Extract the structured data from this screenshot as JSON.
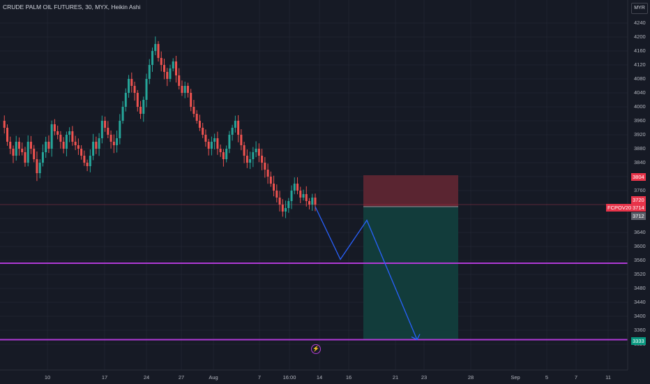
{
  "header": {
    "title": "CRUDE PALM OIL FUTURES, 30, MYX, Heikin Ashi",
    "currency": "MYR"
  },
  "price_axis": {
    "ticks": [
      "4240",
      "4200",
      "4160",
      "4120",
      "4080",
      "4040",
      "4000",
      "3960",
      "3920",
      "3880",
      "3840",
      "3800",
      "3760",
      "3720",
      "3680",
      "3640",
      "3600",
      "3560",
      "3520",
      "3480",
      "3440",
      "3400",
      "3360",
      "3320"
    ]
  },
  "time_axis": {
    "ticks": [
      "10",
      "17",
      "24",
      "27",
      "Aug",
      "7",
      "16:00",
      "14",
      "16",
      "21",
      "23",
      "28",
      "Sep",
      "5",
      "7",
      "11"
    ]
  },
  "price_labels": {
    "stop": "3804",
    "line": "3720",
    "symbol": "FCPOV2023",
    "current": "3714",
    "bottom": "3712",
    "target": "3333"
  },
  "colors": {
    "background": "#161a25",
    "up": "#26a69a",
    "down": "#ef5350",
    "support_line": "#b03ad6",
    "arrow": "#2962ff",
    "stop_zone": "#5a2531",
    "target_zone": "#123c3b"
  },
  "icons": {
    "event_marker": "lightning-icon"
  },
  "chart_data": {
    "type": "candlestick",
    "style": "Heikin Ashi",
    "symbol": "FCPOV2023",
    "interval": "30",
    "exchange": "MYX",
    "ylim": [
      3320,
      4250
    ],
    "horizontal_lines": [
      3552,
      3333
    ],
    "current_price_line": 3720,
    "position": {
      "entry": 3714,
      "stop": 3804,
      "target": 3333,
      "direction": "short"
    },
    "projected_path": [
      3714,
      3563,
      3675,
      3333
    ],
    "price_path": [
      3960,
      3940,
      3900,
      3880,
      3860,
      3900,
      3880,
      3870,
      3840,
      3900,
      3880,
      3850,
      3810,
      3840,
      3870,
      3900,
      3880,
      3950,
      3930,
      3920,
      3900,
      3880,
      3920,
      3930,
      3900,
      3890,
      3880,
      3860,
      3840,
      3830,
      3860,
      3900,
      3880,
      3910,
      3960,
      3940,
      3920,
      3900,
      3890,
      3910,
      3960,
      4000,
      4040,
      4080,
      4060,
      4040,
      4000,
      3980,
      4020,
      4080,
      4120,
      4160,
      4180,
      4140,
      4120,
      4100,
      4080,
      4110,
      4130,
      4090,
      4060,
      4040,
      4060,
      4040,
      4000,
      3980,
      3960,
      3940,
      3920,
      3900,
      3880,
      3900,
      3910,
      3880,
      3870,
      3850,
      3880,
      3920,
      3940,
      3960,
      3920,
      3890,
      3860,
      3840,
      3850,
      3870,
      3880,
      3860,
      3840,
      3820,
      3800,
      3780,
      3760,
      3740,
      3720,
      3700,
      3710,
      3730,
      3760,
      3780,
      3760,
      3740,
      3750,
      3730,
      3720,
      3740,
      3720
    ]
  }
}
